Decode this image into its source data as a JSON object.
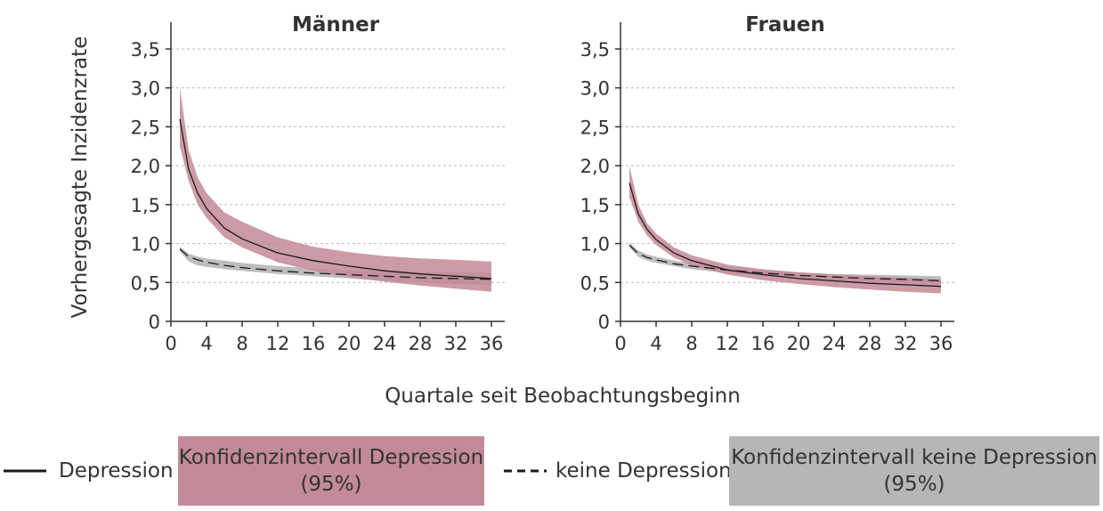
{
  "chart_data": {
    "type": "line",
    "xlabel": "Quartale seit Beobachtungsbeginn",
    "ylabel": "Vorhergesagte Inzidenzrate",
    "xlim": [
      0,
      36
    ],
    "ylim": [
      0,
      3.5
    ],
    "xticks": [
      "0",
      "4",
      "8",
      "12",
      "16",
      "20",
      "24",
      "28",
      "32",
      "36"
    ],
    "yticks": [
      "0",
      "0,5",
      "1,0",
      "1,5",
      "2,0",
      "2,5",
      "3,0",
      "3,5"
    ],
    "grid": "horizontal dashed",
    "colors": {
      "depression_band": "#c38a97",
      "no_depression_band": "#b5b6b8",
      "line": "#1a1a1a"
    },
    "panels": [
      {
        "title": "Männer",
        "x": [
          1,
          2,
          3,
          4,
          6,
          8,
          12,
          16,
          20,
          24,
          28,
          32,
          36
        ],
        "series": [
          {
            "name": "Depression",
            "values": [
              2.6,
              1.95,
              1.65,
              1.45,
              1.2,
              1.06,
              0.88,
              0.78,
              0.71,
              0.65,
              0.61,
              0.58,
              0.55
            ]
          },
          {
            "name": "keine Depression",
            "values": [
              0.93,
              0.83,
              0.79,
              0.76,
              0.72,
              0.69,
              0.65,
              0.62,
              0.6,
              0.58,
              0.56,
              0.55,
              0.54
            ]
          }
        ],
        "bands": [
          {
            "name": "Konfidenzintervall Depression (95%)",
            "lower": [
              2.25,
              1.8,
              1.5,
              1.33,
              1.08,
              0.95,
              0.76,
              0.65,
              0.57,
              0.51,
              0.46,
              0.42,
              0.38
            ],
            "upper": [
              3.0,
              2.2,
              1.85,
              1.65,
              1.4,
              1.28,
              1.08,
              0.96,
              0.89,
              0.84,
              0.81,
              0.79,
              0.77
            ]
          },
          {
            "name": "Konfidenzintervall keine Depression (95%)",
            "lower": [
              0.9,
              0.77,
              0.72,
              0.7,
              0.67,
              0.65,
              0.61,
              0.58,
              0.55,
              0.52,
              0.5,
              0.48,
              0.46
            ],
            "upper": [
              0.96,
              0.87,
              0.83,
              0.81,
              0.78,
              0.75,
              0.71,
              0.68,
              0.66,
              0.65,
              0.64,
              0.63,
              0.63
            ]
          }
        ]
      },
      {
        "title": "Frauen",
        "x": [
          1,
          2,
          3,
          4,
          6,
          8,
          12,
          16,
          20,
          24,
          28,
          32,
          36
        ],
        "series": [
          {
            "name": "Depression",
            "values": [
              1.78,
              1.38,
              1.18,
              1.05,
              0.88,
              0.78,
              0.66,
              0.6,
              0.55,
              0.52,
              0.49,
              0.47,
              0.45
            ]
          },
          {
            "name": "keine Depression",
            "values": [
              0.98,
              0.87,
              0.82,
              0.79,
              0.74,
              0.71,
              0.66,
              0.62,
              0.59,
              0.57,
              0.55,
              0.54,
              0.52
            ]
          }
        ],
        "bands": [
          {
            "name": "Konfidenzintervall Depression (95%)",
            "lower": [
              1.6,
              1.28,
              1.1,
              0.98,
              0.82,
              0.72,
              0.6,
              0.53,
              0.48,
              0.44,
              0.41,
              0.38,
              0.36
            ],
            "upper": [
              2.0,
              1.5,
              1.26,
              1.13,
              0.95,
              0.85,
              0.73,
              0.67,
              0.63,
              0.6,
              0.58,
              0.56,
              0.54
            ]
          },
          {
            "name": "Konfidenzintervall keine Depression (95%)",
            "lower": [
              0.95,
              0.83,
              0.78,
              0.75,
              0.71,
              0.67,
              0.62,
              0.59,
              0.56,
              0.53,
              0.51,
              0.5,
              0.48
            ],
            "upper": [
              1.01,
              0.91,
              0.86,
              0.83,
              0.78,
              0.75,
              0.7,
              0.66,
              0.63,
              0.61,
              0.6,
              0.59,
              0.58
            ]
          }
        ]
      }
    ]
  },
  "legend": {
    "depression": "Depression",
    "ci_depression_line1": "Konfidenzintervall Depression",
    "ci_depression_line2": "(95%)",
    "no_depression": "keine Depression",
    "ci_no_depression_line1": "Konfidenzintervall keine Depression",
    "ci_no_depression_line2": "(95%)"
  }
}
